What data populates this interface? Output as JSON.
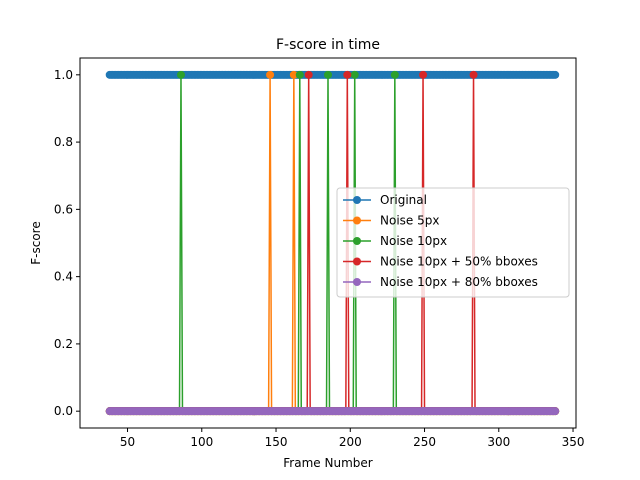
{
  "chart_data": {
    "type": "line",
    "title": "F-score in time",
    "xlabel": "Frame Number",
    "ylabel": "F-score",
    "xlim": [
      18,
      352
    ],
    "ylim": [
      -0.05,
      1.05
    ],
    "xticks": [
      50,
      100,
      150,
      200,
      250,
      300,
      350
    ],
    "yticks": [
      0.0,
      0.2,
      0.4,
      0.6,
      0.8,
      1.0
    ],
    "xtick_labels": [
      "50",
      "100",
      "150",
      "200",
      "250",
      "300",
      "350"
    ],
    "ytick_labels": [
      "0.0",
      "0.2",
      "0.4",
      "0.6",
      "0.8",
      "1.0"
    ],
    "frame_range": [
      38,
      338
    ],
    "grid": false,
    "legend_position": "center right",
    "series": [
      {
        "name": "Original",
        "color": "#1f77b4",
        "baseline": 1.0,
        "spikes": []
      },
      {
        "name": "Noise 5px",
        "color": "#ff7f0e",
        "baseline": 0.0,
        "spikes": [
          146,
          162
        ]
      },
      {
        "name": "Noise 10px",
        "color": "#2ca02c",
        "baseline": 0.0,
        "spikes": [
          86,
          166,
          185,
          203,
          230
        ]
      },
      {
        "name": "Noise 10px + 50% bboxes",
        "color": "#d62728",
        "baseline": 0.0,
        "spikes": [
          172,
          198,
          249,
          283
        ]
      },
      {
        "name": "Noise 10px + 80% bboxes",
        "color": "#9467bd",
        "baseline": 0.0,
        "spikes": []
      }
    ]
  }
}
